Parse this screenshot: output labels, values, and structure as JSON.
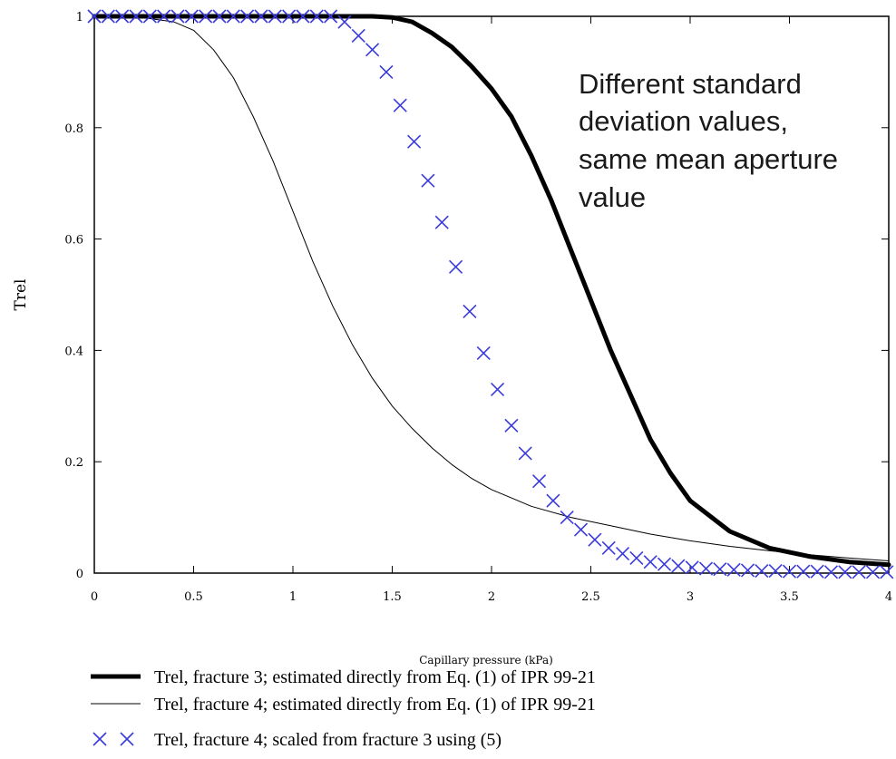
{
  "chart_data": {
    "type": "line",
    "title": "",
    "xlabel": "Capillary pressure (kPa)",
    "ylabel": "Trel",
    "xlim": [
      0,
      4
    ],
    "ylim": [
      0,
      1
    ],
    "x_ticks": [
      "0",
      "0.5",
      "1",
      "1.5",
      "2",
      "2.5",
      "3",
      "3.5",
      "4"
    ],
    "y_ticks": [
      "0",
      "0.2",
      "0.4",
      "0.6",
      "0.8",
      "1"
    ],
    "grid": false,
    "legend_position": "bottom",
    "annotation": [
      "Different standard",
      "deviation values,",
      "same mean aperture",
      "value"
    ],
    "series": [
      {
        "name": "Trel, fracture 3; estimated directly from Eq. (1) of IPR 99-21",
        "style": "thick-line",
        "color": "#000000",
        "x": [
          0,
          0.5,
          1.0,
          1.2,
          1.4,
          1.5,
          1.6,
          1.7,
          1.8,
          1.9,
          2.0,
          2.1,
          2.2,
          2.3,
          2.4,
          2.5,
          2.6,
          2.7,
          2.8,
          2.9,
          3.0,
          3.2,
          3.4,
          3.6,
          3.8,
          4.0
        ],
        "y": [
          1.0,
          1.0,
          1.0,
          1.0,
          1.0,
          0.998,
          0.99,
          0.97,
          0.945,
          0.91,
          0.87,
          0.82,
          0.75,
          0.67,
          0.58,
          0.49,
          0.4,
          0.32,
          0.24,
          0.18,
          0.13,
          0.075,
          0.045,
          0.03,
          0.02,
          0.015
        ]
      },
      {
        "name": "Trel, fracture 4; estimated directly from Eq. (1) of IPR 99-21",
        "style": "thin-line",
        "color": "#000000",
        "x": [
          0,
          0.2,
          0.4,
          0.5,
          0.6,
          0.7,
          0.8,
          0.9,
          1.0,
          1.1,
          1.2,
          1.3,
          1.4,
          1.5,
          1.6,
          1.7,
          1.8,
          1.9,
          2.0,
          2.1,
          2.2,
          2.4,
          2.6,
          2.8,
          3.0,
          3.2,
          3.4,
          3.6,
          3.8,
          4.0
        ],
        "y": [
          1.0,
          1.0,
          0.99,
          0.975,
          0.94,
          0.89,
          0.82,
          0.74,
          0.65,
          0.56,
          0.48,
          0.41,
          0.35,
          0.3,
          0.26,
          0.225,
          0.195,
          0.17,
          0.15,
          0.135,
          0.12,
          0.1,
          0.085,
          0.07,
          0.058,
          0.048,
          0.04,
          0.033,
          0.027,
          0.022
        ]
      },
      {
        "name": "Trel, fracture 4; scaled from fracture 3 using (5)",
        "style": "x-markers",
        "color": "#3a3adc",
        "x": [
          0.0,
          0.07,
          0.14,
          0.21,
          0.28,
          0.35,
          0.42,
          0.49,
          0.56,
          0.63,
          0.7,
          0.77,
          0.84,
          0.91,
          0.98,
          1.05,
          1.12,
          1.19,
          1.26,
          1.33,
          1.4,
          1.47,
          1.54,
          1.61,
          1.68,
          1.75,
          1.82,
          1.89,
          1.96,
          2.03,
          2.1,
          2.17,
          2.24,
          2.31,
          2.38,
          2.45,
          2.52,
          2.59,
          2.66,
          2.73,
          2.8,
          2.87,
          2.94,
          3.01,
          3.08,
          3.15,
          3.22,
          3.29,
          3.36,
          3.43,
          3.5,
          3.57,
          3.64,
          3.71,
          3.78,
          3.85,
          3.92,
          3.99
        ],
        "y": [
          1.0,
          1.0,
          1.0,
          1.0,
          1.0,
          1.0,
          1.0,
          1.0,
          1.0,
          1.0,
          1.0,
          1.0,
          1.0,
          1.0,
          1.0,
          1.0,
          1.0,
          1.0,
          0.99,
          0.965,
          0.94,
          0.9,
          0.84,
          0.775,
          0.705,
          0.63,
          0.55,
          0.47,
          0.395,
          0.33,
          0.265,
          0.215,
          0.165,
          0.13,
          0.1,
          0.078,
          0.06,
          0.045,
          0.035,
          0.027,
          0.02,
          0.016,
          0.013,
          0.01,
          0.008,
          0.007,
          0.006,
          0.005,
          0.004,
          0.004,
          0.003,
          0.003,
          0.003,
          0.002,
          0.002,
          0.002,
          0.002,
          0.002
        ]
      }
    ]
  }
}
